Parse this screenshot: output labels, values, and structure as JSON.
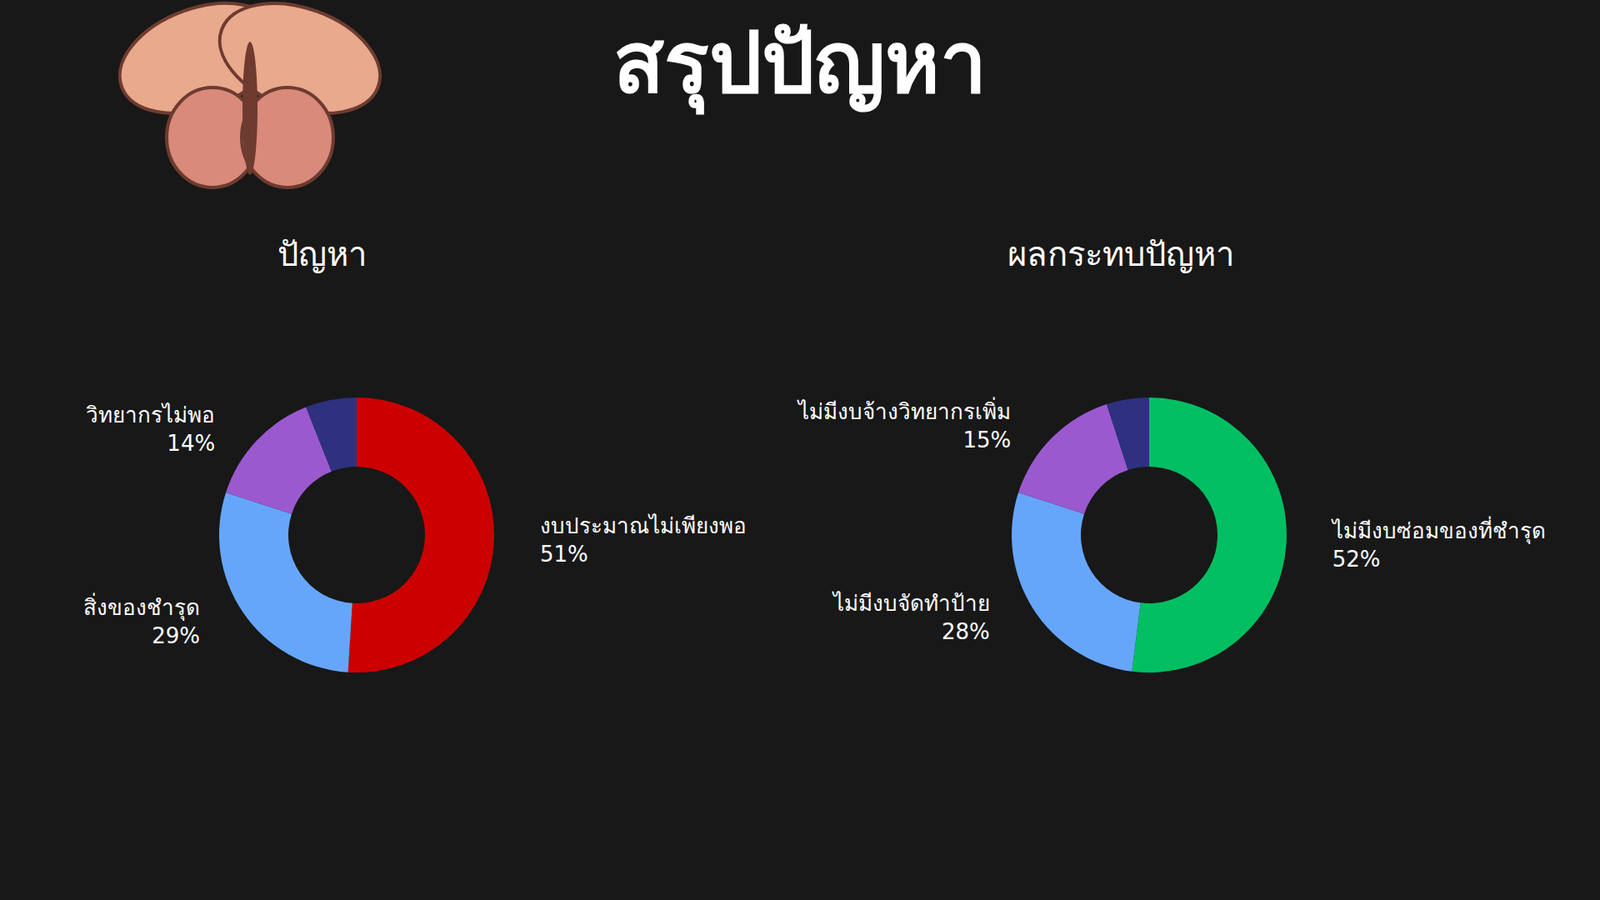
{
  "title": "สรุปปัญหา",
  "chart_data": [
    {
      "type": "pie",
      "title": "ปัญหา",
      "categories": [
        "งบประมาณไม่เพียงพอ",
        "สิ่งของชำรุด",
        "วิทยากรไม่พอ",
        null
      ],
      "values": [
        51,
        29,
        14,
        6
      ],
      "value_labels": [
        "51%",
        "29%",
        "14%",
        null
      ],
      "colors": [
        "#cc0000",
        "#66a6fa",
        "#9b59d0",
        "#2e3180"
      ],
      "data_labels": true
    },
    {
      "type": "pie",
      "title": "ผลกระทบปัญหา",
      "categories": [
        "ไม่มีงบซ่อมของที่ชำรุด",
        "ไม่มีงบจัดทำป้าย",
        "ไม่มีงบจ้างวิทยากรเพิ่ม",
        null
      ],
      "values": [
        52,
        28,
        15,
        5
      ],
      "value_labels": [
        "52%",
        "28%",
        "15%",
        null
      ],
      "colors": [
        "#00bf63",
        "#66a6fa",
        "#9b59d0",
        "#2e3180"
      ],
      "data_labels": true
    }
  ]
}
